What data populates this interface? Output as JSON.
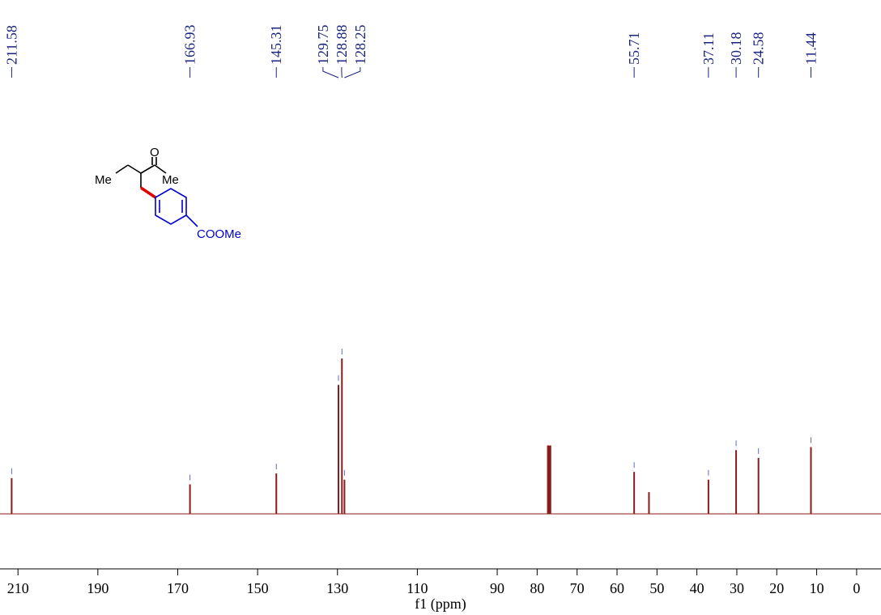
{
  "chart_data": {
    "type": "spectrum",
    "x_label": "f1 (ppm)",
    "xlim": [
      214.5,
      -6.1
    ],
    "ylim": [
      0,
      100
    ],
    "xticks": [
      210,
      190,
      170,
      150,
      130,
      110,
      90,
      80,
      70,
      60,
      50,
      40,
      30,
      20,
      10,
      0
    ],
    "x": [
      211.58,
      166.93,
      145.31,
      129.75,
      128.88,
      128.25,
      55.71,
      37.11,
      30.18,
      24.58,
      11.44
    ],
    "values": [
      23,
      19,
      26,
      83,
      100,
      22,
      27,
      22,
      41,
      36,
      43
    ],
    "other_x": [
      77.32,
      77.0,
      76.68,
      52.0
    ],
    "other_values": [
      44,
      44,
      44,
      14
    ],
    "color": "#8b1a1a",
    "label_color": "#1a237e",
    "structure_labels": [
      "Me",
      "O",
      "Me",
      "COOMe"
    ]
  }
}
